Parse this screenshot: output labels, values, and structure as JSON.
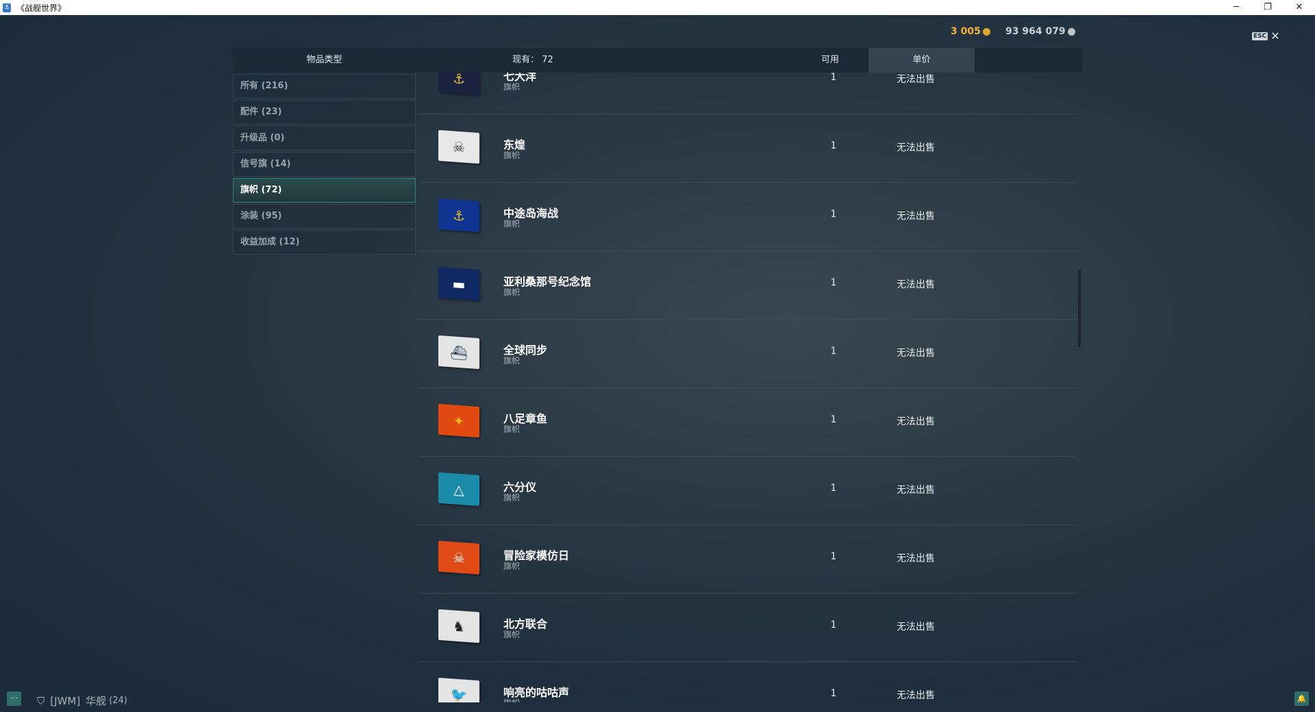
{
  "window": {
    "title": "《战舰世界》",
    "minimize": "─",
    "restore": "❐",
    "close": "✕"
  },
  "currency": {
    "gold": "3 005",
    "credits": "93 964 079",
    "gold_color": "#f0b43c",
    "credits_color": "#c9d0d4"
  },
  "esc": {
    "key": "ESC",
    "close": "✕"
  },
  "header": {
    "category": "物品类型",
    "owned": "现有： 72",
    "available": "可用",
    "unit_price": "单价"
  },
  "sidebar": {
    "items": [
      {
        "label": "所有 (216)"
      },
      {
        "label": "配件 (23)"
      },
      {
        "label": "升级品 (0)"
      },
      {
        "label": "信号旗 (14)"
      },
      {
        "label": "旗帜 (72)",
        "active": true
      },
      {
        "label": "涂装 (95)"
      },
      {
        "label": "收益加成 (12)"
      }
    ]
  },
  "rows": [
    {
      "name": "七大洋",
      "type": "旗帜",
      "qty": "1",
      "price": "无法出售",
      "flag_color": "#1a2240",
      "glyph": "⚓",
      "glyph_color": "#e8c040"
    },
    {
      "name": "东煌",
      "type": "旗帜",
      "qty": "1",
      "price": "无法出售",
      "flag_color": "#e8e8e8",
      "glyph": "☠",
      "glyph_color": "#333"
    },
    {
      "name": "中途岛海战",
      "type": "旗帜",
      "qty": "1",
      "price": "无法出售",
      "flag_color": "#0f3590",
      "glyph": "⚓",
      "glyph_color": "#f0c020"
    },
    {
      "name": "亚利桑那号纪念馆",
      "type": "旗帜",
      "qty": "1",
      "price": "无法出售",
      "flag_color": "#102a66",
      "glyph": "▬",
      "glyph_color": "#fff"
    },
    {
      "name": "全球同步",
      "type": "旗帜",
      "qty": "1",
      "price": "无法出售",
      "flag_color": "#e4e4e4",
      "glyph": "⛴",
      "glyph_color": "#223a5a"
    },
    {
      "name": "八足章鱼",
      "type": "旗帜",
      "qty": "1",
      "price": "无法出售",
      "flag_color": "#e04a10",
      "glyph": "✦",
      "glyph_color": "#f2b020"
    },
    {
      "name": "六分仪",
      "type": "旗帜",
      "qty": "1",
      "price": "无法出售",
      "flag_color": "#1a8aa8",
      "glyph": "△",
      "glyph_color": "#fff"
    },
    {
      "name": "冒险家模仿日",
      "type": "旗帜",
      "qty": "1",
      "price": "无法出售",
      "flag_color": "#e04a14",
      "glyph": "☠",
      "glyph_color": "#fff"
    },
    {
      "name": "北方联合",
      "type": "旗帜",
      "qty": "1",
      "price": "无法出售",
      "flag_color": "#e4e4e4",
      "glyph": "♞",
      "glyph_color": "#222"
    },
    {
      "name": "响亮的咕咕声",
      "type": "旗帜",
      "qty": "1",
      "price": "无法出售",
      "flag_color": "#e4e4e4",
      "glyph": "🐦",
      "glyph_color": "#c82828"
    }
  ],
  "bottom": {
    "chat_icon": "chat-icon",
    "clan": "[JWM]",
    "player": "华舰",
    "level": "(24)",
    "bell_icon": "bell-icon"
  }
}
